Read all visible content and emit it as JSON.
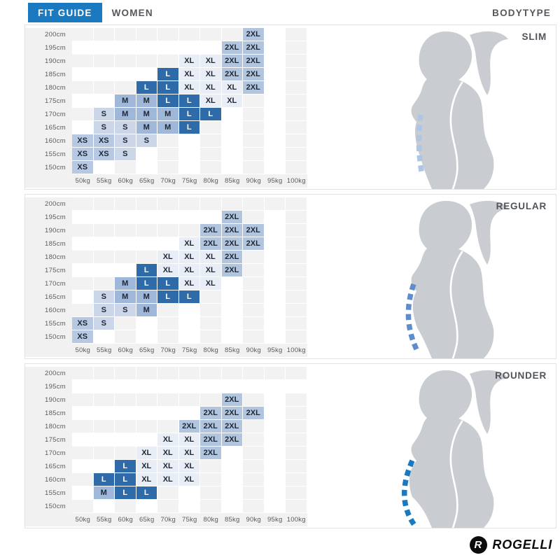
{
  "header": {
    "fit_guide": "FIT GUIDE",
    "women": "WOMEN",
    "bodytype": "BODYTYPE"
  },
  "weights": [
    "50kg",
    "55kg",
    "60kg",
    "65kg",
    "70kg",
    "75kg",
    "80kg",
    "85kg",
    "90kg",
    "95kg",
    "100kg"
  ],
  "heights": [
    "200cm",
    "195cm",
    "190cm",
    "185cm",
    "180cm",
    "175cm",
    "170cm",
    "165cm",
    "160cm",
    "155cm",
    "150cm"
  ],
  "size_colors": {
    "XS": "#b6c8e2",
    "S": "#cbd6e8",
    "M": "#9fb7d8",
    "L": "#2f6ba8",
    "XL": "#e9eef6",
    "2XL": "#b1c5df"
  },
  "stripe_gray": "#f2f2f2",
  "brand_blue": "#1b79c0",
  "silhouette_gray": "#c9ccd0",
  "panels": [
    {
      "bodytype": "SLIM",
      "dash_color": "#aec6e4",
      "belly": 0,
      "dash_path": "M162,128 Q156,172 164,214",
      "grid": [
        [
          "",
          "",
          "",
          "",
          "",
          "",
          "",
          "",
          "2XL",
          "",
          ""
        ],
        [
          "",
          "",
          "",
          "",
          "",
          "",
          "",
          "2XL",
          "2XL",
          "",
          ""
        ],
        [
          "",
          "",
          "",
          "",
          "",
          "XL",
          "XL",
          "2XL",
          "2XL",
          "",
          ""
        ],
        [
          "",
          "",
          "",
          "",
          "L",
          "XL",
          "XL",
          "2XL",
          "2XL",
          "",
          ""
        ],
        [
          "",
          "",
          "",
          "L",
          "L",
          "XL",
          "XL",
          "XL",
          "2XL",
          "",
          ""
        ],
        [
          "",
          "",
          "M",
          "M",
          "L",
          "L",
          "XL",
          "XL",
          "",
          "",
          ""
        ],
        [
          "",
          "S",
          "M",
          "M",
          "M",
          "L",
          "L",
          "",
          "",
          "",
          ""
        ],
        [
          "",
          "S",
          "S",
          "M",
          "M",
          "L",
          "",
          "",
          "",
          "",
          ""
        ],
        [
          "XS",
          "XS",
          "S",
          "S",
          "",
          "",
          "",
          "",
          "",
          "",
          ""
        ],
        [
          "XS",
          "XS",
          "S",
          "",
          "",
          "",
          "",
          "",
          "",
          "",
          ""
        ],
        [
          "XS",
          "",
          "",
          "",
          "",
          "",
          "",
          "",
          "",
          "",
          ""
        ]
      ]
    },
    {
      "bodytype": "REGULAR",
      "dash_color": "#5e8dcb",
      "belly": 5,
      "dash_path": "M152,128 Q135,176 156,221",
      "grid": [
        [
          "",
          "",
          "",
          "",
          "",
          "",
          "",
          "",
          "",
          "",
          ""
        ],
        [
          "",
          "",
          "",
          "",
          "",
          "",
          "",
          "2XL",
          "",
          "",
          ""
        ],
        [
          "",
          "",
          "",
          "",
          "",
          "",
          "2XL",
          "2XL",
          "2XL",
          "",
          ""
        ],
        [
          "",
          "",
          "",
          "",
          "",
          "XL",
          "2XL",
          "2XL",
          "2XL",
          "",
          ""
        ],
        [
          "",
          "",
          "",
          "",
          "XL",
          "XL",
          "XL",
          "2XL",
          "",
          "",
          ""
        ],
        [
          "",
          "",
          "",
          "L",
          "XL",
          "XL",
          "XL",
          "2XL",
          "",
          "",
          ""
        ],
        [
          "",
          "",
          "M",
          "L",
          "L",
          "XL",
          "XL",
          "",
          "",
          "",
          ""
        ],
        [
          "",
          "S",
          "M",
          "M",
          "L",
          "L",
          "",
          "",
          "",
          "",
          ""
        ],
        [
          "",
          "S",
          "S",
          "M",
          "",
          "",
          "",
          "",
          "",
          "",
          ""
        ],
        [
          "XS",
          "S",
          "",
          "",
          "",
          "",
          "",
          "",
          "",
          "",
          ""
        ],
        [
          "XS",
          "",
          "",
          "",
          "",
          "",
          "",
          "",
          "",
          "",
          ""
        ]
      ]
    },
    {
      "bodytype": "ROUNDER",
      "dash_color": "#1b79c0",
      "belly": 12,
      "dash_path": "M150,138 Q126,192 153,230",
      "grid": [
        [
          "",
          "",
          "",
          "",
          "",
          "",
          "",
          "",
          "",
          "",
          ""
        ],
        [
          "",
          "",
          "",
          "",
          "",
          "",
          "",
          "",
          "",
          "",
          ""
        ],
        [
          "",
          "",
          "",
          "",
          "",
          "",
          "",
          "2XL",
          "",
          "",
          ""
        ],
        [
          "",
          "",
          "",
          "",
          "",
          "",
          "2XL",
          "2XL",
          "2XL",
          "",
          ""
        ],
        [
          "",
          "",
          "",
          "",
          "",
          "2XL",
          "2XL",
          "2XL",
          "",
          "",
          ""
        ],
        [
          "",
          "",
          "",
          "",
          "XL",
          "XL",
          "2XL",
          "2XL",
          "",
          "",
          ""
        ],
        [
          "",
          "",
          "",
          "XL",
          "XL",
          "XL",
          "2XL",
          "",
          "",
          "",
          ""
        ],
        [
          "",
          "",
          "L",
          "XL",
          "XL",
          "XL",
          "",
          "",
          "",
          "",
          ""
        ],
        [
          "",
          "L",
          "L",
          "XL",
          "XL",
          "XL",
          "",
          "",
          "",
          "",
          ""
        ],
        [
          "",
          "M",
          "L",
          "L",
          "",
          "",
          "",
          "",
          "",
          "",
          ""
        ],
        [
          "",
          "",
          "",
          "",
          "",
          "",
          "",
          "",
          "",
          "",
          ""
        ]
      ]
    }
  ],
  "logo": {
    "mark": "R",
    "word": "ROGELLI"
  }
}
